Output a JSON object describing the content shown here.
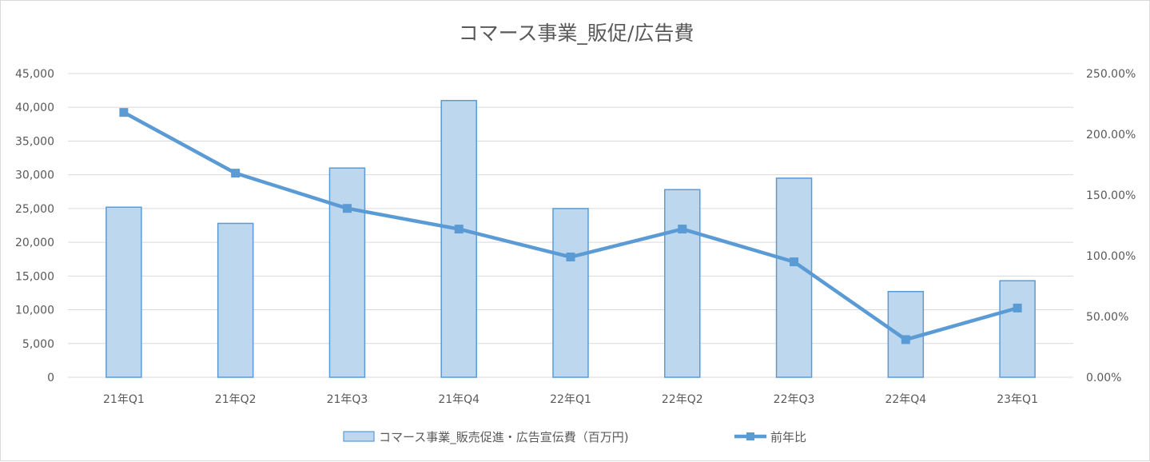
{
  "chart_data": {
    "type": "bar",
    "title": "コマース事業_販促/広告費",
    "categories": [
      "21年Q1",
      "21年Q2",
      "21年Q3",
      "21年Q4",
      "22年Q1",
      "22年Q2",
      "22年Q3",
      "22年Q4",
      "23年Q1"
    ],
    "series": [
      {
        "name": "コマース事業_販売促進・広告宣伝費（百万円)",
        "type": "bar",
        "axis": "left",
        "color": "#bdd7ee",
        "border_color": "#5b9bd5",
        "values": [
          25200,
          22800,
          31000,
          41000,
          25000,
          27800,
          29500,
          12700,
          14300
        ]
      },
      {
        "name": "前年比",
        "type": "line",
        "axis": "right",
        "color": "#5b9bd5",
        "marker": "square",
        "values": [
          2.18,
          1.68,
          1.39,
          1.22,
          0.99,
          1.22,
          0.95,
          0.31,
          0.57
        ]
      }
    ],
    "y_left": {
      "ylim": [
        0,
        45000
      ],
      "ticks": [
        "0",
        "5,000",
        "10,000",
        "15,000",
        "20,000",
        "25,000",
        "30,000",
        "35,000",
        "40,000",
        "45,000"
      ]
    },
    "y_right": {
      "ylim": [
        0,
        2.5
      ],
      "ticks": [
        "0.00%",
        "50.00%",
        "100.00%",
        "150.00%",
        "200.00%",
        "250.00%"
      ]
    },
    "xlabel": "",
    "ylabel": "",
    "grid": true,
    "gridline_color": "#d9d9d9",
    "legend_position": "bottom"
  }
}
